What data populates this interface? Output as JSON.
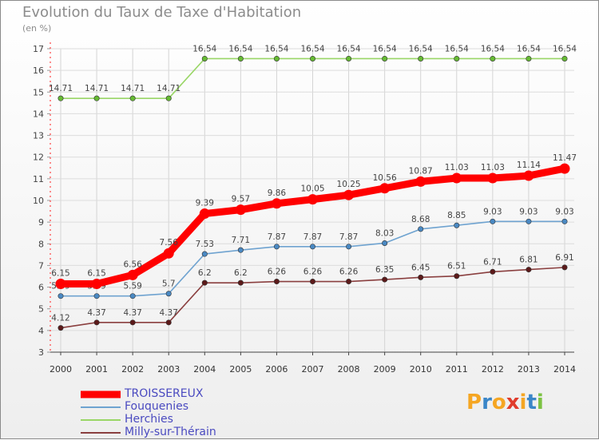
{
  "title": "Evolution du Taux de Taxe d'Habitation",
  "subtitle": "(en %)",
  "logo": {
    "letters": [
      "P",
      "r",
      "o",
      "x",
      "i",
      "t",
      "i"
    ],
    "colors": [
      "#f5a623",
      "#3a86c8",
      "#f5a623",
      "#e03c2c",
      "#f5a623",
      "#3a86c8",
      "#7cc242"
    ]
  },
  "chart_data": {
    "type": "line",
    "categories": [
      "2000",
      "2001",
      "2002",
      "2003",
      "2004",
      "2005",
      "2006",
      "2007",
      "2008",
      "2009",
      "2010",
      "2011",
      "2012",
      "2013",
      "2014"
    ],
    "ylim": [
      3,
      17
    ],
    "yticks": [
      "3",
      "4",
      "5",
      "6",
      "7",
      "8",
      "9",
      "10",
      "11",
      "12",
      "13",
      "14",
      "15",
      "16",
      "17"
    ],
    "grid": true,
    "series": [
      {
        "name": "Herchies",
        "color": "#99d666",
        "marker": "#66bb33",
        "emphasis": false,
        "values": [
          14.71,
          14.71,
          14.71,
          14.71,
          16.54,
          16.54,
          16.54,
          16.54,
          16.54,
          16.54,
          16.54,
          16.54,
          16.54,
          16.54,
          16.54
        ],
        "labels": [
          "14.71",
          "14.71",
          "14.71",
          "14.71",
          "16.54",
          "16.54",
          "16.54",
          "16.54",
          "16.54",
          "16.54",
          "16.54",
          "16.54",
          "16.54",
          "16.54",
          "16.54"
        ]
      },
      {
        "name": "Fouquenies",
        "color": "#6fa3d0",
        "marker": "#4a89c3",
        "emphasis": false,
        "values": [
          5.59,
          5.59,
          5.59,
          5.7,
          7.53,
          7.71,
          7.87,
          7.87,
          7.87,
          8.03,
          8.68,
          8.85,
          9.03,
          9.03,
          9.03
        ],
        "labels": [
          "5.59",
          "5.59",
          "5.59",
          "5.7",
          "7.53",
          "7.71",
          "7.87",
          "7.87",
          "7.87",
          "8.03",
          "8.68",
          "8.85",
          "9.03",
          "9.03",
          "9.03"
        ]
      },
      {
        "name": "Milly-sur-Thérain",
        "color": "#8a3f3f",
        "marker": "#5c1a1a",
        "emphasis": false,
        "values": [
          4.12,
          4.37,
          4.37,
          4.37,
          6.2,
          6.2,
          6.26,
          6.26,
          6.26,
          6.35,
          6.45,
          6.51,
          6.71,
          6.81,
          6.91
        ],
        "labels": [
          "4.12",
          "4.37",
          "4.37",
          "4.37",
          "6.2",
          "6.2",
          "6.26",
          "6.26",
          "6.26",
          "6.35",
          "6.45",
          "6.51",
          "6.71",
          "6.81",
          "6.91"
        ]
      },
      {
        "name": "TROISSEREUX",
        "color": "#ff0000",
        "marker": "#ff0000",
        "emphasis": true,
        "values": [
          6.15,
          6.15,
          6.56,
          7.56,
          9.39,
          9.57,
          9.86,
          10.05,
          10.25,
          10.56,
          10.87,
          11.03,
          11.03,
          11.14,
          11.47
        ],
        "labels": [
          "6.15",
          "6.15",
          "6.56",
          "7.56",
          "9.39",
          "9.57",
          "9.86",
          "10.05",
          "10.25",
          "10.56",
          "10.87",
          "11.03",
          "11.03",
          "11.14",
          "11.47"
        ]
      }
    ],
    "legend": [
      "TROISSEREUX",
      "Fouquenies",
      "Herchies",
      "Milly-sur-Thérain"
    ],
    "legend_placement": "bottom-left"
  }
}
